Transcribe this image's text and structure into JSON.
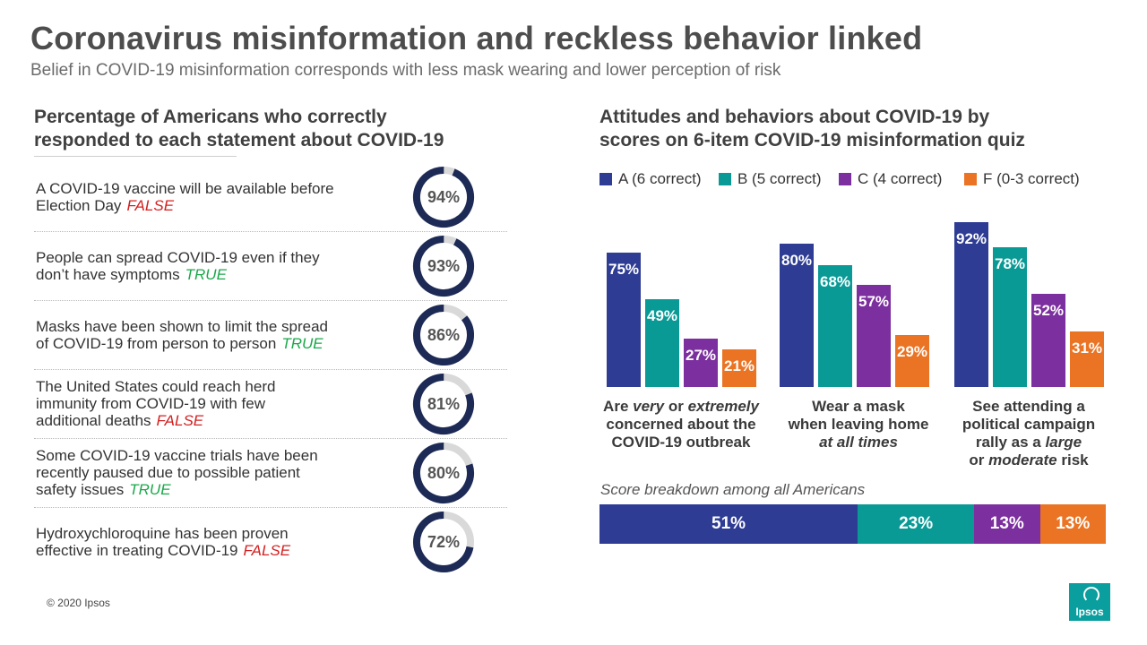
{
  "title": "Coronavirus misinformation and reckless behavior linked",
  "subtitle": "Belief in COVID-19 misinformation  corresponds with less mask wearing and lower perception of risk",
  "left_panel": {
    "heading_line1": "Percentage of Americans who correctly",
    "heading_line2": "responded to each statement about COVID-19",
    "statements": [
      {
        "line1": "A COVID-19 vaccine will be available before",
        "line2": "Election Day",
        "line3": "",
        "verdict": "FALSE",
        "pct": 94,
        "pct_label": "94%"
      },
      {
        "line1": "People can spread COVID-19 even if they",
        "line2": "don’t have symptoms",
        "line3": "",
        "verdict": "TRUE",
        "pct": 93,
        "pct_label": "93%"
      },
      {
        "line1": "Masks have been shown to limit the spread",
        "line2": "of COVID-19 from person to person",
        "line3": "",
        "verdict": "TRUE",
        "pct": 86,
        "pct_label": "86%"
      },
      {
        "line1": "The United States could reach herd",
        "line2": "immunity from COVID-19 with few",
        "line3": "additional deaths",
        "verdict": "FALSE",
        "pct": 81,
        "pct_label": "81%"
      },
      {
        "line1": "Some COVID-19 vaccine trials have been",
        "line2": "recently paused due to possible patient",
        "line3": "safety issues",
        "verdict": "TRUE",
        "pct": 80,
        "pct_label": "80%"
      },
      {
        "line1": "Hydroxychloroquine has been proven",
        "line2": "effective in treating COVID-19",
        "line3": "",
        "verdict": "FALSE",
        "pct": 72,
        "pct_label": "72%"
      }
    ]
  },
  "right_panel": {
    "heading_line1": "Attitudes and behaviors about COVID-19 by",
    "heading_line2": "scores on 6-item COVID-19 misinformation quiz",
    "group_labels": [
      {
        "a": "Are ",
        "b": "very",
        "c": " or ",
        "d": "extremely",
        "e": "concerned about the",
        "f": "COVID-19 outbreak"
      },
      {
        "a": "Wear a mask",
        "b": "when leaving home",
        "c": "at all times"
      },
      {
        "a": "See attending a",
        "b": "political campaign",
        "c": "rally as a ",
        "d": "large",
        "e": "or ",
        "f": "moderate",
        "g": " risk"
      }
    ],
    "score_caption": "Score breakdown among all Americans"
  },
  "colors": {
    "A": "#2e3c94",
    "B": "#0a9a96",
    "C": "#7c2f9e",
    "F": "#ea7424",
    "donut_fill": "#1c2a55",
    "donut_track": "#d9d9d9"
  },
  "chart_data": [
    {
      "type": "bar",
      "title": "Attitudes and behaviors about COVID-19 by scores on 6-item COVID-19 misinformation quiz",
      "categories": [
        "Are very or extremely concerned about the COVID-19 outbreak",
        "Wear a mask when leaving home at all times",
        "See attending a political campaign rally as a large or moderate risk"
      ],
      "series": [
        {
          "name": "A (6 correct)",
          "key": "A",
          "values": [
            75,
            80,
            92
          ]
        },
        {
          "name": "B (5 correct)",
          "key": "B",
          "values": [
            49,
            68,
            78
          ]
        },
        {
          "name": "C (4 correct)",
          "key": "C",
          "values": [
            27,
            57,
            52
          ]
        },
        {
          "name": "F (0-3 correct)",
          "key": "F",
          "values": [
            21,
            29,
            31
          ]
        }
      ],
      "value_suffix": "%",
      "ylim": [
        0,
        100
      ],
      "legend": "top"
    },
    {
      "type": "bar",
      "subtype": "stacked-100",
      "title": "Score breakdown among all Americans",
      "segments": [
        {
          "key": "A",
          "value": 51,
          "label": "51%"
        },
        {
          "key": "B",
          "value": 23,
          "label": "23%"
        },
        {
          "key": "C",
          "value": 13,
          "label": "13%"
        },
        {
          "key": "F",
          "value": 13,
          "label": "13%"
        }
      ]
    },
    {
      "type": "pie",
      "subtype": "donut",
      "title": "Percentage of Americans who correctly responded to each statement about COVID-19",
      "values": [
        94,
        93,
        86,
        81,
        80,
        72
      ]
    }
  ],
  "footer": {
    "copyright": "© 2020 Ipsos",
    "logo_text": "Ipsos"
  }
}
